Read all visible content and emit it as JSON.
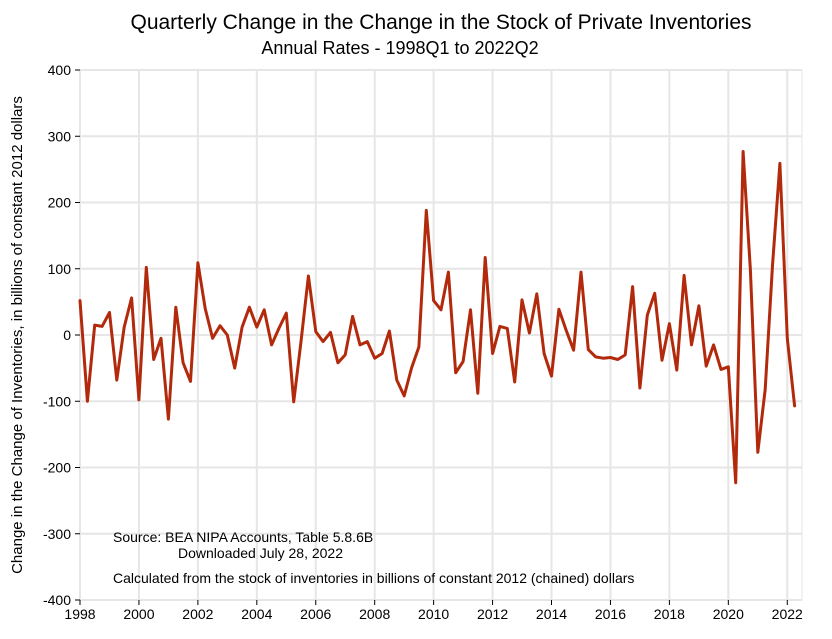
{
  "chart_data": {
    "type": "line",
    "title": "Quarterly Change in the Change in the Stock of Private Inventories",
    "subtitle": "Annual Rates - 1998Q1 to 2022Q2",
    "xlabel": "",
    "ylabel": "Change in the Change of Inventories, in billions of constant 2012 dollars",
    "xlim": [
      1998,
      2022.5
    ],
    "ylim": [
      -400,
      400
    ],
    "grid": true,
    "x_ticks": [
      "1998",
      "2000",
      "2002",
      "2004",
      "2006",
      "2008",
      "2010",
      "2012",
      "2014",
      "2016",
      "2018",
      "2020",
      "2022"
    ],
    "y_ticks": [
      "400",
      "300",
      "200",
      "100",
      "0",
      "-100",
      "-200",
      "-300",
      "-400"
    ],
    "series_color": "#B22A0B",
    "series": [
      {
        "x_start": "1998Q1",
        "frequency": "quarterly",
        "values": [
          52,
          -100,
          15,
          13,
          34,
          -68,
          12,
          56,
          -98,
          102,
          -37,
          -5,
          -127,
          42,
          -42,
          -70,
          109,
          40,
          -5,
          14,
          0,
          -50,
          12,
          42,
          12,
          38,
          -15,
          10,
          33,
          -101,
          -10,
          89,
          5,
          -10,
          4,
          -42,
          -30,
          28,
          -15,
          -10,
          -35,
          -28,
          6,
          -68,
          -92,
          -50,
          -18,
          188,
          52,
          38,
          95,
          -57,
          -40,
          38,
          -88,
          117,
          -28,
          13,
          10,
          -71,
          53,
          3,
          62,
          -28,
          -62,
          39,
          7,
          -23,
          95,
          -22,
          -33,
          -35,
          -34,
          -37,
          -30,
          73,
          -80,
          30,
          63,
          -38,
          17,
          -53,
          90,
          -15,
          44,
          -47,
          -15,
          -52,
          -48,
          -223,
          277,
          98,
          -177,
          -82,
          105,
          259,
          -5,
          -107
        ]
      }
    ],
    "annotations": {
      "source_line1": "Source:  BEA NIPA Accounts, Table 5.8.6B",
      "source_line2": "Downloaded July 28, 2022",
      "calc_note": "Calculated from the stock of inventories in billions of constant 2012 (chained) dollars"
    }
  }
}
